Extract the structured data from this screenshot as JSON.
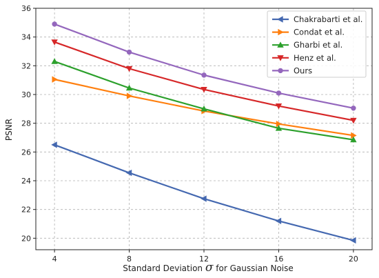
{
  "chart_data": {
    "type": "line",
    "x": [
      4,
      8,
      12,
      16,
      20
    ],
    "xticks": [
      "4",
      "8",
      "12",
      "16",
      "20"
    ],
    "yticks": [
      "20",
      "22",
      "24",
      "26",
      "28",
      "30",
      "32",
      "34",
      "36"
    ],
    "xlim": [
      3,
      21
    ],
    "ylim": [
      19.2,
      36
    ],
    "xlabel_prefix": "Standard Deviation",
    "xlabel_symbol": "σ",
    "xlabel_suffix": "for Gaussian Noise",
    "ylabel": "PSNR",
    "grid": true,
    "legend_position": "top-right",
    "series": [
      {
        "name": "Chakrabarti et al.",
        "color": "#4468b0",
        "marker": "tri-left",
        "values": [
          26.5,
          24.55,
          22.75,
          21.2,
          19.85
        ]
      },
      {
        "name": "Condat et al.",
        "color": "#ff7f0e",
        "marker": "tri-right",
        "values": [
          31.05,
          29.9,
          28.85,
          27.95,
          27.15
        ]
      },
      {
        "name": "Gharbi et al.",
        "color": "#2ca02c",
        "marker": "triangle-up",
        "values": [
          32.3,
          30.45,
          29.0,
          27.65,
          26.85
        ]
      },
      {
        "name": "Henz et al.",
        "color": "#d62728",
        "marker": "triangle-down",
        "values": [
          33.65,
          31.8,
          30.35,
          29.2,
          28.2
        ]
      },
      {
        "name": "Ours",
        "color": "#9467bd",
        "marker": "circle",
        "values": [
          34.9,
          32.95,
          31.35,
          30.1,
          29.05
        ]
      }
    ]
  }
}
